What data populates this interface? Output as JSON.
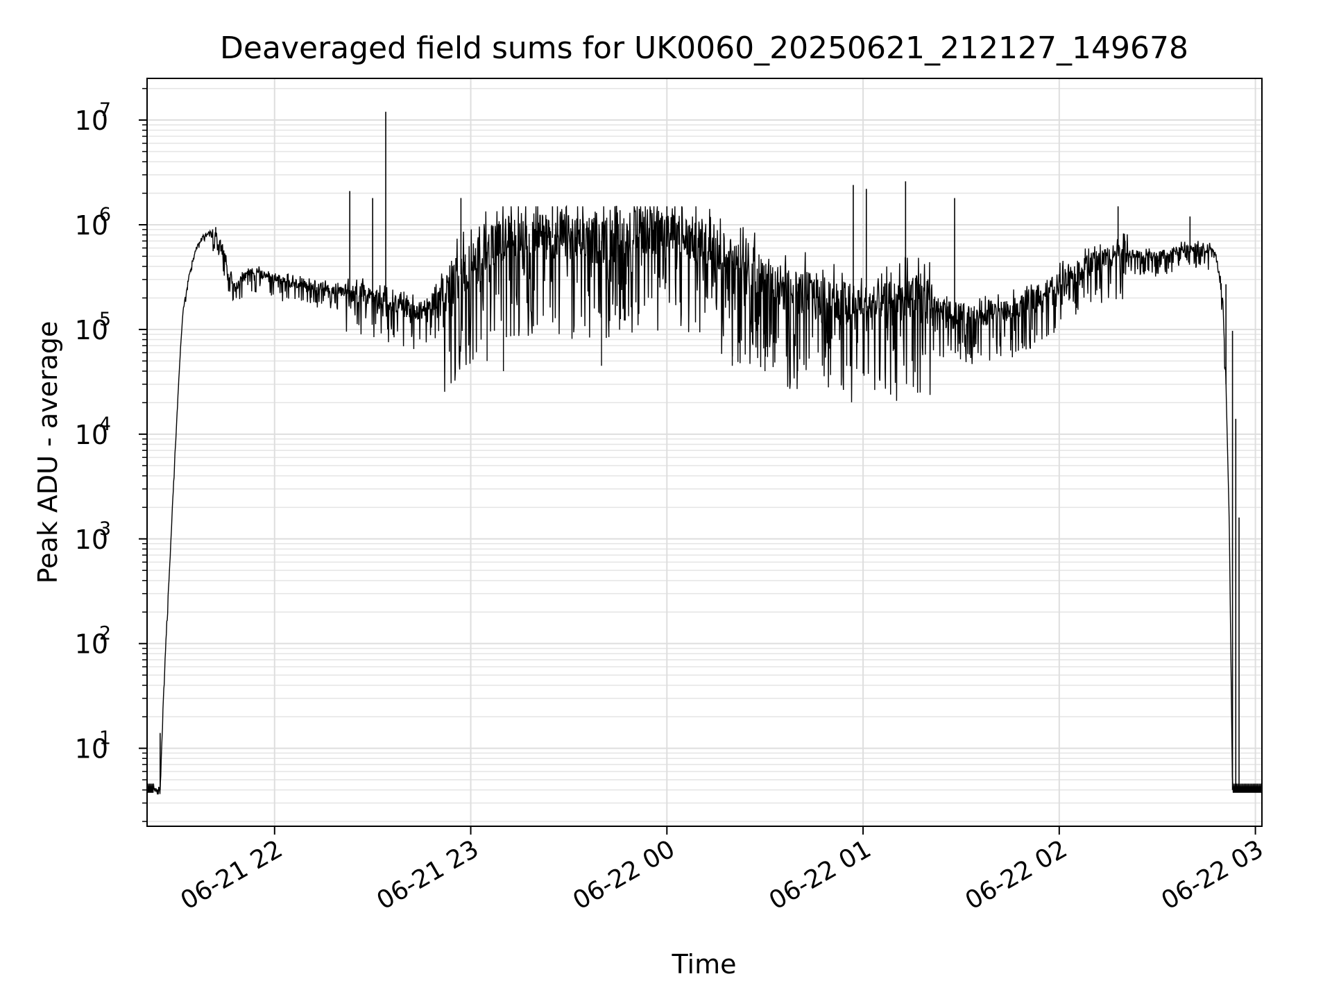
{
  "chart_data": {
    "type": "line",
    "title": "Deaveraged field sums for UK0060_20250621_212127_149678",
    "xlabel": "Time",
    "ylabel": "Peak ADU - average",
    "yscale": "log",
    "grid": "major and minor",
    "x_ticks": [
      "06-21 22",
      "06-21 23",
      "06-22 00",
      "06-22 01",
      "06-22 02",
      "06-22 03"
    ],
    "y_ticks": [
      {
        "exp": "1",
        "base": "10"
      },
      {
        "exp": "2",
        "base": "10"
      },
      {
        "exp": "3",
        "base": "10"
      },
      {
        "exp": "4",
        "base": "10"
      },
      {
        "exp": "5",
        "base": "10"
      },
      {
        "exp": "6",
        "base": "10"
      },
      {
        "exp": "7",
        "base": "10"
      }
    ],
    "xlim": [
      "2025-06-21 21:21",
      "2025-06-22 03:02"
    ],
    "ylim": [
      1.8,
      25000000
    ],
    "line_color": "#000000",
    "series": [
      {
        "x": [
          "21:21",
          "21:24",
          "21:25",
          "21:26",
          "21:27",
          "21:28",
          "21:29",
          "21:30",
          "21:31",
          "21:32",
          "21:34",
          "21:36",
          "21:38",
          "21:40",
          "21:42",
          "21:44",
          "21:46",
          "21:48",
          "21:50",
          "21:52",
          "21:55",
          "21:58",
          "22:00",
          "22:05",
          "22:10",
          "22:15",
          "22:20",
          "22:25",
          "22:30",
          "22:35",
          "22:40",
          "22:45",
          "22:50",
          "22:55",
          "23:00",
          "23:05",
          "23:10",
          "23:15",
          "23:20",
          "23:25",
          "23:30",
          "23:35",
          "23:40",
          "23:45",
          "23:50",
          "23:55",
          "00:00",
          "00:05",
          "00:10",
          "00:15",
          "00:20",
          "00:25",
          "00:30",
          "00:35",
          "00:40",
          "00:45",
          "00:50",
          "00:55",
          "01:00",
          "01:05",
          "01:10",
          "01:15",
          "01:20",
          "01:25",
          "01:30",
          "01:35",
          "01:40",
          "01:45",
          "01:50",
          "01:55",
          "02:00",
          "02:05",
          "02:10",
          "02:15",
          "02:20",
          "02:25",
          "02:30",
          "02:35",
          "02:40",
          "02:45",
          "02:48",
          "02:50",
          "02:51",
          "02:52",
          "02:53",
          "02:54",
          "02:56",
          "03:00"
        ],
        "y": [
          4,
          4,
          4,
          30,
          150,
          600,
          3000,
          12000,
          50000,
          150000,
          350000,
          600000,
          750000,
          850000,
          800000,
          600000,
          350000,
          250000,
          300000,
          350000,
          350000,
          300000,
          300000,
          280000,
          260000,
          250000,
          230000,
          220000,
          200000,
          180000,
          160000,
          150000,
          200000,
          300000,
          400000,
          550000,
          700000,
          800000,
          800000,
          750000,
          750000,
          700000,
          700000,
          750000,
          850000,
          850000,
          800000,
          750000,
          700000,
          600000,
          450000,
          350000,
          300000,
          250000,
          230000,
          200000,
          180000,
          170000,
          160000,
          160000,
          180000,
          200000,
          180000,
          150000,
          140000,
          130000,
          140000,
          150000,
          180000,
          220000,
          280000,
          350000,
          420000,
          500000,
          550000,
          500000,
          500000,
          550000,
          600000,
          600000,
          500000,
          200000,
          30000,
          1500,
          4,
          4,
          4,
          4
        ]
      }
    ],
    "spikes": [
      {
        "x": "21:25",
        "y": 14
      },
      {
        "x": "21:42",
        "y": 950000
      },
      {
        "x": "22:34",
        "y": 12000000
      },
      {
        "x": "22:23",
        "y": 2100000
      },
      {
        "x": "22:30",
        "y": 1800000
      },
      {
        "x": "22:57",
        "y": 1800000
      },
      {
        "x": "23:25",
        "y": 1500000
      },
      {
        "x": "00:00",
        "y": 1500000
      },
      {
        "x": "00:57",
        "y": 2400000
      },
      {
        "x": "01:01",
        "y": 2200000
      },
      {
        "x": "01:13",
        "y": 2600000
      },
      {
        "x": "01:28",
        "y": 1800000
      },
      {
        "x": "02:18",
        "y": 1500000
      },
      {
        "x": "02:40",
        "y": 1200000
      },
      {
        "x": "02:51",
        "y": 270000
      },
      {
        "x": "02:53",
        "y": 97000
      },
      {
        "x": "02:54",
        "y": 14000
      },
      {
        "x": "02:55",
        "y": 1600
      }
    ],
    "dips": [
      {
        "x": "23:05",
        "y": 50000
      },
      {
        "x": "23:10",
        "y": 40000
      },
      {
        "x": "23:40",
        "y": 45000
      },
      {
        "x": "00:20",
        "y": 45000
      },
      {
        "x": "00:30",
        "y": 40000
      },
      {
        "x": "00:40",
        "y": 40000
      },
      {
        "x": "00:55",
        "y": 45000
      },
      {
        "x": "01:00",
        "y": 38000
      },
      {
        "x": "01:05",
        "y": 40000
      },
      {
        "x": "01:15",
        "y": 50000
      }
    ]
  }
}
